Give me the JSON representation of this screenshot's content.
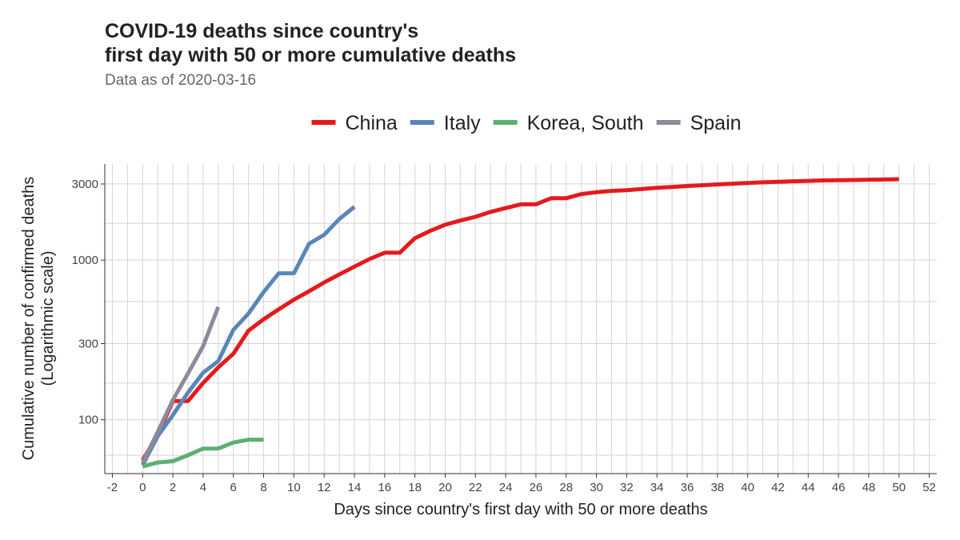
{
  "chart_data": {
    "type": "line",
    "title_line1": "COVID-19 deaths since country's",
    "title_line2": "first day with 50 or more cumulative deaths",
    "subtitle": "Data as of 2020-03-16",
    "xlabel": "Days since country's first day with 50 or more deaths",
    "ylabel_line1": "Cumulative number of confirmed deaths",
    "ylabel_line2": "(Logarithmic scale)",
    "y_scale": "log",
    "xlim": [
      -2.5,
      52.5
    ],
    "ylim": [
      46,
      4000
    ],
    "x_ticks": [
      -2,
      0,
      2,
      4,
      6,
      8,
      10,
      12,
      14,
      16,
      18,
      20,
      22,
      24,
      26,
      28,
      30,
      32,
      34,
      36,
      38,
      40,
      42,
      44,
      46,
      48,
      50,
      52
    ],
    "y_ticks": [
      100,
      300,
      1000,
      3000
    ],
    "y_minor_grid": [
      60,
      170,
      550,
      1700
    ],
    "legend_position": "top",
    "series": [
      {
        "name": "China",
        "color": "#E41A1C",
        "x": [
          0,
          1,
          2,
          3,
          4,
          5,
          6,
          7,
          8,
          9,
          10,
          11,
          12,
          13,
          14,
          15,
          16,
          17,
          18,
          19,
          20,
          21,
          22,
          23,
          24,
          25,
          26,
          27,
          28,
          29,
          30,
          31,
          32,
          33,
          34,
          35,
          36,
          37,
          38,
          39,
          40,
          41,
          42,
          43,
          44,
          45,
          46,
          47,
          48,
          49,
          50
        ],
        "y": [
          56,
          80,
          131,
          131,
          170,
          213,
          259,
          362,
          426,
          492,
          565,
          638,
          724,
          813,
          910,
          1016,
          1113,
          1113,
          1371,
          1523,
          1666,
          1770,
          1868,
          2004,
          2118,
          2236,
          2236,
          2442,
          2442,
          2592,
          2663,
          2715,
          2744,
          2788,
          2835,
          2870,
          2912,
          2945,
          2981,
          3013,
          3042,
          3070,
          3097,
          3119,
          3136,
          3158,
          3169,
          3176,
          3189,
          3199,
          3213
        ]
      },
      {
        "name": "Italy",
        "color": "#5A86B9",
        "x": [
          0,
          1,
          2,
          3,
          4,
          5,
          6,
          7,
          8,
          9,
          10,
          11,
          12,
          13,
          14
        ],
        "y": [
          52,
          79,
          107,
          148,
          197,
          233,
          366,
          463,
          631,
          827,
          827,
          1266,
          1441,
          1809,
          2158
        ]
      },
      {
        "name": "Korea, South",
        "color": "#5CB071",
        "x": [
          0,
          1,
          2,
          3,
          4,
          5,
          6,
          7,
          8
        ],
        "y": [
          51,
          54,
          55,
          60,
          66,
          66,
          72,
          75,
          75
        ]
      },
      {
        "name": "Spain",
        "color": "#8F8A99",
        "x": [
          0,
          1,
          2,
          3,
          4,
          5
        ],
        "y": [
          54,
          84,
          133,
          195,
          289,
          509
        ]
      }
    ]
  }
}
